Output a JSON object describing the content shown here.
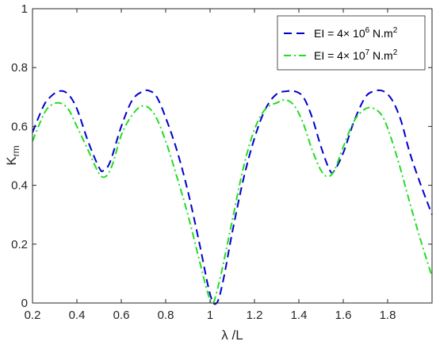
{
  "chart_data": {
    "type": "line",
    "title": "",
    "xlabel": "λ /L",
    "ylabel": "K",
    "ylabel_sub": "rm",
    "xlim": [
      0.2,
      2.0
    ],
    "ylim": [
      0,
      1
    ],
    "xticks": [
      0.2,
      0.4,
      0.6,
      0.8,
      1,
      1.2,
      1.4,
      1.6,
      1.8
    ],
    "xtick_labels": [
      "0.2",
      "0.4",
      "0.6",
      "0.8",
      "1",
      "1.2",
      "1.4",
      "1.6",
      "1.8"
    ],
    "yticks": [
      0,
      0.2,
      0.4,
      0.6,
      0.8,
      1
    ],
    "ytick_labels": [
      "0",
      "0.2",
      "0.4",
      "0.6",
      "0.8",
      "1"
    ],
    "grid": false,
    "legend_position": "top-right",
    "series": [
      {
        "name": "EI = 4× 10^6 N.m^2",
        "legend_parts": [
          "EI = 4× 10",
          "6",
          " N.m",
          "2"
        ],
        "color": "#0000cc",
        "style": "dashed",
        "x": [
          0.2,
          0.25,
          0.28,
          0.32,
          0.36,
          0.4,
          0.45,
          0.5,
          0.52,
          0.55,
          0.6,
          0.65,
          0.7,
          0.73,
          0.76,
          0.8,
          0.85,
          0.9,
          0.95,
          1.0,
          1.03,
          1.06,
          1.1,
          1.15,
          1.2,
          1.25,
          1.3,
          1.35,
          1.38,
          1.42,
          1.46,
          1.5,
          1.54,
          1.56,
          1.6,
          1.65,
          1.7,
          1.74,
          1.78,
          1.82,
          1.86,
          1.9,
          1.95,
          2.0
        ],
        "y": [
          0.58,
          0.67,
          0.7,
          0.72,
          0.71,
          0.66,
          0.55,
          0.46,
          0.45,
          0.48,
          0.6,
          0.69,
          0.72,
          0.72,
          0.7,
          0.63,
          0.52,
          0.38,
          0.21,
          0.03,
          0.0,
          0.08,
          0.24,
          0.42,
          0.56,
          0.66,
          0.71,
          0.72,
          0.72,
          0.7,
          0.63,
          0.53,
          0.45,
          0.45,
          0.51,
          0.62,
          0.7,
          0.72,
          0.72,
          0.69,
          0.62,
          0.51,
          0.4,
          0.3
        ]
      },
      {
        "name": "EI = 4× 10^7 N.m^2",
        "legend_parts": [
          "EI = 4× 10",
          "7",
          " N.m",
          "2"
        ],
        "color": "#22dd22",
        "style": "dashdot",
        "x": [
          0.2,
          0.25,
          0.28,
          0.32,
          0.36,
          0.4,
          0.45,
          0.5,
          0.53,
          0.56,
          0.6,
          0.65,
          0.7,
          0.75,
          0.8,
          0.85,
          0.9,
          0.95,
          0.98,
          1.0,
          1.01,
          1.02,
          1.05,
          1.1,
          1.15,
          1.2,
          1.25,
          1.3,
          1.34,
          1.38,
          1.42,
          1.46,
          1.5,
          1.53,
          1.56,
          1.6,
          1.65,
          1.7,
          1.74,
          1.78,
          1.82,
          1.86,
          1.9,
          1.95,
          2.0
        ],
        "y": [
          0.55,
          0.64,
          0.67,
          0.68,
          0.66,
          0.6,
          0.52,
          0.44,
          0.43,
          0.47,
          0.57,
          0.64,
          0.67,
          0.64,
          0.55,
          0.43,
          0.3,
          0.15,
          0.06,
          0.01,
          0.0,
          0.01,
          0.1,
          0.28,
          0.46,
          0.59,
          0.66,
          0.68,
          0.69,
          0.67,
          0.61,
          0.52,
          0.45,
          0.43,
          0.45,
          0.53,
          0.62,
          0.66,
          0.66,
          0.63,
          0.55,
          0.45,
          0.34,
          0.21,
          0.09
        ]
      }
    ]
  }
}
